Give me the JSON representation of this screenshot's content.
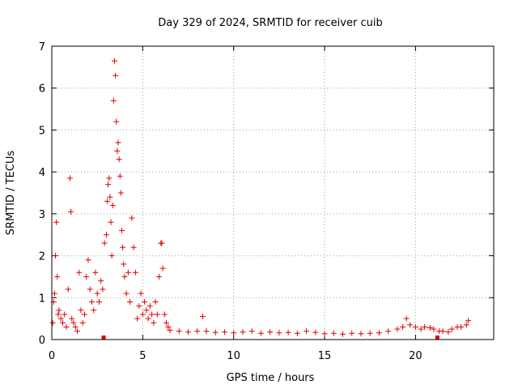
{
  "chart_data": {
    "type": "scatter",
    "title": "Day 329 of 2024, SRMTID for receiver cuib",
    "xlabel": "GPS time / hours",
    "ylabel": "SRMTID / TECUs",
    "xlim": [
      0,
      24.3
    ],
    "ylim": [
      0,
      7
    ],
    "xticks": [
      0,
      5,
      10,
      15,
      20
    ],
    "yticks": [
      0,
      1,
      2,
      3,
      4,
      5,
      6,
      7
    ],
    "grid": true,
    "marker": "plus",
    "marker_color": "#e00000",
    "series": [
      {
        "name": "SRMTID",
        "x": [
          0.05,
          0.1,
          0.15,
          0.2,
          0.25,
          0.3,
          0.35,
          0.4,
          0.5,
          0.6,
          0.7,
          0.8,
          0.9,
          1.0,
          1.05,
          1.1,
          1.2,
          1.3,
          1.4,
          1.5,
          1.6,
          1.7,
          1.8,
          1.9,
          2.0,
          2.1,
          2.2,
          2.3,
          2.4,
          2.5,
          2.6,
          2.7,
          2.8,
          2.9,
          3.0,
          3.05,
          3.1,
          3.15,
          3.2,
          3.25,
          3.3,
          3.35,
          3.4,
          3.45,
          3.5,
          3.55,
          3.6,
          3.65,
          3.7,
          3.75,
          3.8,
          3.85,
          3.9,
          3.95,
          4.0,
          4.1,
          4.2,
          4.3,
          4.4,
          4.5,
          4.6,
          4.7,
          4.8,
          4.9,
          5.0,
          5.1,
          5.2,
          5.3,
          5.4,
          5.5,
          5.6,
          5.7,
          5.8,
          5.9,
          6.0,
          6.05,
          6.1,
          6.2,
          6.3,
          6.4,
          6.5,
          7.0,
          7.5,
          8.0,
          8.3,
          8.5,
          9.0,
          9.5,
          10.0,
          10.5,
          11.0,
          11.5,
          12.0,
          12.5,
          13.0,
          13.5,
          14.0,
          14.5,
          15.0,
          15.5,
          16.0,
          16.5,
          17.0,
          17.5,
          18.0,
          18.5,
          19.0,
          19.3,
          19.5,
          19.7,
          20.0,
          20.3,
          20.5,
          20.8,
          21.0,
          21.3,
          21.5,
          21.8,
          22.0,
          22.3,
          22.5,
          22.8,
          22.9
        ],
        "y": [
          0.4,
          0.9,
          1.1,
          2.0,
          2.8,
          1.5,
          0.6,
          0.7,
          0.5,
          0.4,
          0.6,
          0.3,
          1.2,
          3.85,
          3.05,
          0.5,
          0.4,
          0.3,
          0.2,
          1.6,
          0.7,
          0.4,
          0.6,
          1.5,
          1.9,
          1.2,
          0.9,
          0.7,
          1.6,
          1.1,
          0.9,
          1.4,
          1.2,
          2.3,
          2.5,
          3.3,
          3.7,
          3.85,
          3.4,
          2.8,
          2.0,
          3.2,
          5.7,
          6.65,
          6.3,
          5.2,
          4.5,
          4.7,
          4.3,
          3.9,
          3.5,
          2.6,
          2.2,
          1.8,
          1.5,
          1.1,
          1.6,
          0.9,
          2.9,
          2.2,
          1.6,
          0.5,
          0.8,
          1.1,
          0.6,
          0.9,
          0.7,
          0.5,
          0.8,
          0.6,
          0.4,
          0.9,
          0.6,
          1.5,
          2.3,
          2.3,
          1.7,
          0.6,
          0.4,
          0.3,
          0.22,
          0.2,
          0.18,
          0.2,
          0.55,
          0.2,
          0.17,
          0.18,
          0.16,
          0.18,
          0.2,
          0.15,
          0.18,
          0.16,
          0.17,
          0.15,
          0.2,
          0.17,
          0.14,
          0.15,
          0.13,
          0.15,
          0.14,
          0.15,
          0.16,
          0.2,
          0.25,
          0.3,
          0.5,
          0.35,
          0.3,
          0.25,
          0.3,
          0.28,
          0.25,
          0.2,
          0.2,
          0.18,
          0.25,
          0.3,
          0.3,
          0.35,
          0.45
        ]
      }
    ],
    "outliers_square": [
      {
        "x": 2.85,
        "y": 0.0
      },
      {
        "x": 21.2,
        "y": 0.0
      }
    ]
  }
}
